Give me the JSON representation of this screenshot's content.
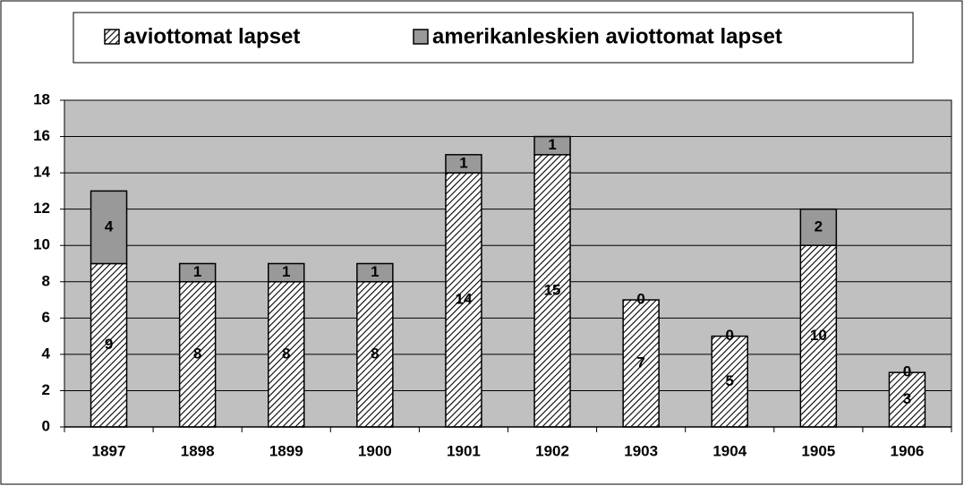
{
  "chart_data": {
    "type": "stacked_bar",
    "categories": [
      "1897",
      "1898",
      "1899",
      "1900",
      "1901",
      "1902",
      "1903",
      "1904",
      "1905",
      "1906"
    ],
    "series": [
      {
        "name": "aviottomat lapset",
        "color": "#000000",
        "hatch": true,
        "values": [
          9,
          8,
          8,
          8,
          14,
          15,
          7,
          5,
          10,
          3
        ]
      },
      {
        "name": "amerikanleskien aviottomat lapset",
        "color": "#999999",
        "hatch": false,
        "values": [
          4,
          1,
          1,
          1,
          1,
          1,
          0,
          0,
          2,
          0
        ]
      }
    ],
    "ylim": [
      0,
      18
    ],
    "yticks": [
      0,
      2,
      4,
      6,
      8,
      10,
      12,
      14,
      16,
      18
    ],
    "grid": true,
    "plot_background": "#c0c0c0"
  }
}
